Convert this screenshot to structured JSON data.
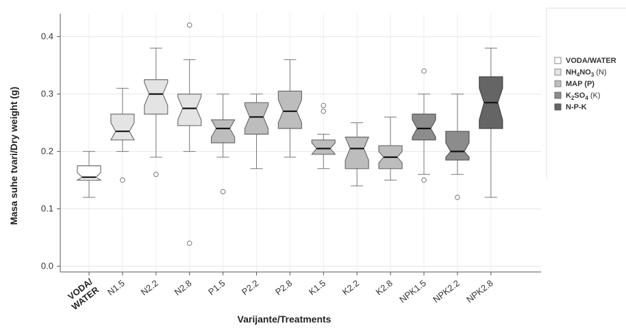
{
  "chart_data": {
    "type": "boxplot",
    "ylabel": "Masa suhe tvari/Dry weight (g)",
    "xlabel": "Varijante/Treatments",
    "ylim": [
      -0.01,
      0.44
    ],
    "yticks": [
      "0.0",
      "0.1",
      "0.2",
      "0.3",
      "0.4"
    ],
    "ytick_values": [
      0,
      0.1,
      0.2,
      0.3,
      0.4
    ],
    "grid": true,
    "legend_position": "right",
    "legend": [
      {
        "label": "VODA/WATER",
        "color": "#ffffff"
      },
      {
        "label_main": "NH",
        "sub1": "4",
        "label_mid": "NO",
        "sub2": "3",
        "label_tail": " (N)",
        "color": "#e4e4e4"
      },
      {
        "label": "MAP (P)",
        "color": "#bdbdbd"
      },
      {
        "label_main": "K",
        "sub1": "2",
        "label_mid": "SO",
        "sub2": "4",
        "label_tail": " (K)",
        "color": "#8c8c8c"
      },
      {
        "label": "N-P-K",
        "color": "#656565"
      }
    ],
    "categories": [
      {
        "label": "VODA/WATER",
        "line1": "VODA/",
        "line2": "WATER",
        "group": 0,
        "whisker_low": 0.12,
        "q1": 0.15,
        "median": 0.155,
        "q3": 0.175,
        "whisker_high": 0.2,
        "notch_low": 0.147,
        "notch_high": 0.163,
        "outliers": []
      },
      {
        "label": "N1.5",
        "group": 1,
        "whisker_low": 0.2,
        "q1": 0.22,
        "median": 0.235,
        "q3": 0.265,
        "whisker_high": 0.31,
        "notch_low": 0.22,
        "notch_high": 0.25,
        "outliers": [
          0.15
        ]
      },
      {
        "label": "N2.2",
        "group": 1,
        "whisker_low": 0.19,
        "q1": 0.265,
        "median": 0.3,
        "q3": 0.325,
        "whisker_high": 0.38,
        "notch_low": 0.28,
        "notch_high": 0.32,
        "outliers": [
          0.16
        ]
      },
      {
        "label": "N2.8",
        "group": 1,
        "whisker_low": 0.2,
        "q1": 0.245,
        "median": 0.275,
        "q3": 0.3,
        "whisker_high": 0.36,
        "notch_low": 0.255,
        "notch_high": 0.295,
        "outliers": [
          0.42,
          0.04
        ]
      },
      {
        "label": "P1.5",
        "group": 2,
        "whisker_low": 0.19,
        "q1": 0.215,
        "median": 0.24,
        "q3": 0.255,
        "whisker_high": 0.3,
        "notch_low": 0.225,
        "notch_high": 0.255,
        "outliers": [
          0.13
        ]
      },
      {
        "label": "P2.2",
        "group": 2,
        "whisker_low": 0.17,
        "q1": 0.23,
        "median": 0.26,
        "q3": 0.285,
        "whisker_high": 0.3,
        "notch_low": 0.24,
        "notch_high": 0.28,
        "outliers": []
      },
      {
        "label": "P2.8",
        "group": 2,
        "whisker_low": 0.19,
        "q1": 0.24,
        "median": 0.27,
        "q3": 0.305,
        "whisker_high": 0.36,
        "notch_low": 0.25,
        "notch_high": 0.29,
        "outliers": []
      },
      {
        "label": "K1.5",
        "group": 2,
        "whisker_low": 0.17,
        "q1": 0.195,
        "median": 0.205,
        "q3": 0.22,
        "whisker_high": 0.23,
        "notch_low": 0.195,
        "notch_high": 0.215,
        "outliers": [
          0.28,
          0.27
        ]
      },
      {
        "label": "K2.2",
        "group": 2,
        "whisker_low": 0.14,
        "q1": 0.17,
        "median": 0.205,
        "q3": 0.225,
        "whisker_high": 0.25,
        "notch_low": 0.185,
        "notch_high": 0.225,
        "outliers": []
      },
      {
        "label": "K2.8",
        "group": 2,
        "whisker_low": 0.15,
        "q1": 0.17,
        "median": 0.19,
        "q3": 0.21,
        "whisker_high": 0.26,
        "notch_low": 0.18,
        "notch_high": 0.2,
        "outliers": []
      },
      {
        "label": "NPK1.5",
        "group": 3,
        "whisker_low": 0.16,
        "q1": 0.22,
        "median": 0.24,
        "q3": 0.265,
        "whisker_high": 0.3,
        "notch_low": 0.225,
        "notch_high": 0.255,
        "outliers": [
          0.34,
          0.15
        ]
      },
      {
        "label": "NPK2.2",
        "group": 3,
        "whisker_low": 0.16,
        "q1": 0.185,
        "median": 0.2,
        "q3": 0.235,
        "whisker_high": 0.3,
        "notch_low": 0.19,
        "notch_high": 0.215,
        "outliers": [
          0.12
        ]
      },
      {
        "label": "NPK2.8",
        "group": 4,
        "whisker_low": 0.12,
        "q1": 0.24,
        "median": 0.285,
        "q3": 0.33,
        "whisker_high": 0.38,
        "notch_low": 0.255,
        "notch_high": 0.31,
        "outliers": []
      }
    ]
  }
}
